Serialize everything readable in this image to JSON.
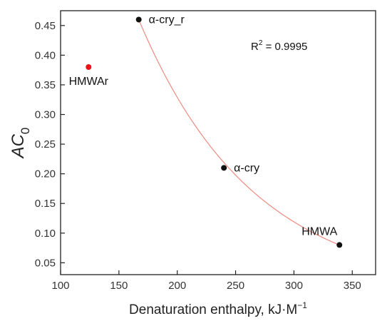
{
  "chart_data": {
    "type": "scatter",
    "title": "",
    "xlabel": "Denaturation enthalpy, kJ·M",
    "xlabel_superscript": "−1",
    "ylabel": "AC",
    "ylabel_subscript": "0",
    "xlim": [
      100,
      370
    ],
    "ylim": [
      0.03,
      0.475
    ],
    "x_ticks": [
      100,
      150,
      200,
      250,
      300,
      350
    ],
    "y_ticks": [
      0.05,
      0.1,
      0.15,
      0.2,
      0.25,
      0.3,
      0.35,
      0.4,
      0.45
    ],
    "x_tick_labels": [
      "100",
      "150",
      "200",
      "250",
      "300",
      "350"
    ],
    "y_tick_labels": [
      "0.05",
      "0.10",
      "0.15",
      "0.20",
      "0.25",
      "0.30",
      "0.35",
      "0.40",
      "0.45"
    ],
    "grid": false,
    "points": [
      {
        "label": "α-cry_r",
        "x": 167,
        "y": 0.46,
        "color": "#111111"
      },
      {
        "label": "α-cry",
        "x": 240,
        "y": 0.21,
        "color": "#111111"
      },
      {
        "label": "HMWA",
        "x": 339,
        "y": 0.08,
        "color": "#111111"
      },
      {
        "label": "HMWAr",
        "x": 124,
        "y": 0.38,
        "color": "#e8141a"
      }
    ],
    "fit": {
      "color": "#f08a80",
      "x_range": [
        167,
        339
      ],
      "annotation_prefix": "R",
      "annotation_superscript": "2",
      "annotation_value": " = 0.9995"
    }
  }
}
